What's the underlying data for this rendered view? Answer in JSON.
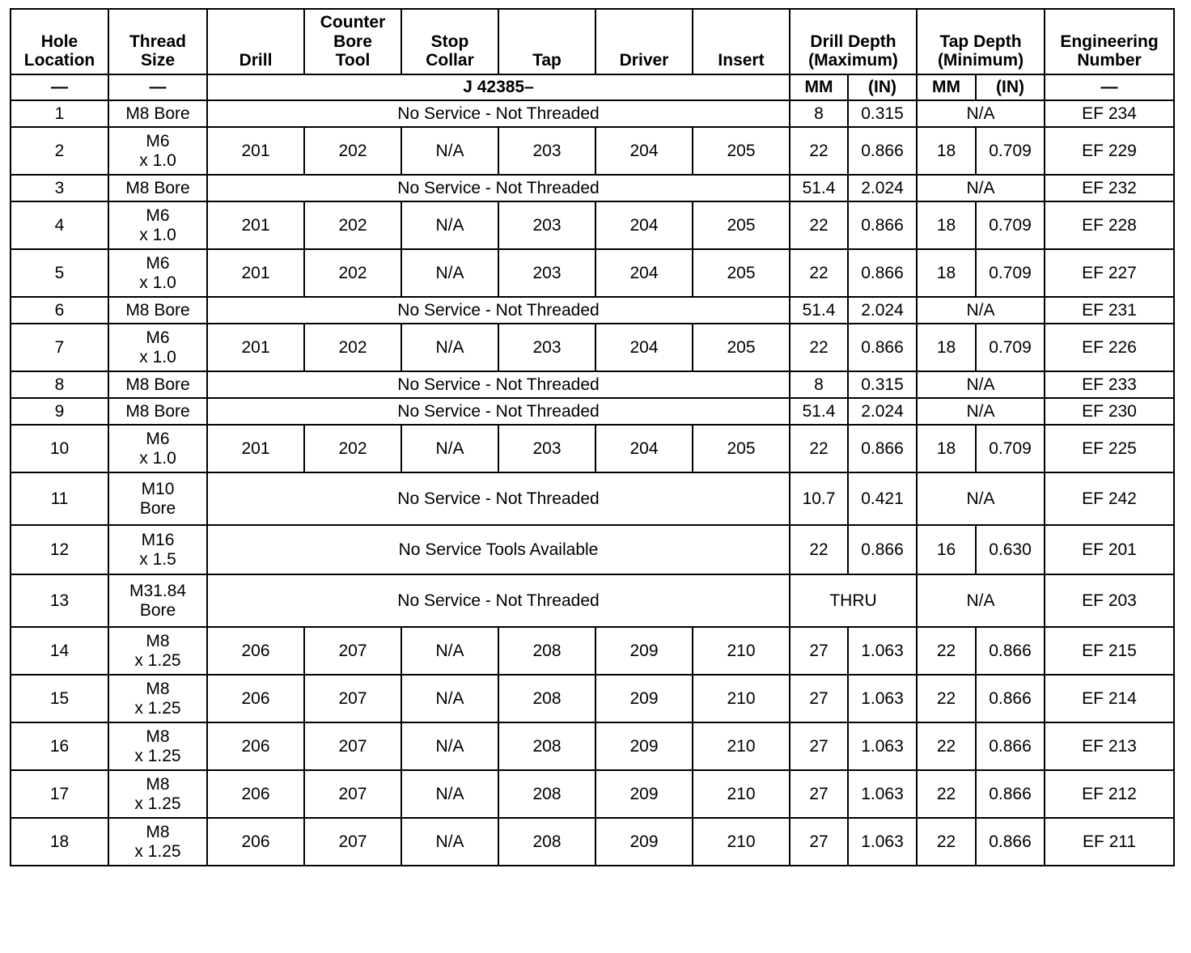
{
  "table": {
    "header": [
      [
        "Hole\nLocation",
        "Thread\nSize",
        "Drill",
        "Counter\nBore\nTool",
        "Stop\nCollar",
        "Tap",
        "Driver",
        "Insert",
        "Drill Depth\n(Maximum)",
        "Tap Depth\n(Minimum)",
        "Engineering\nNumber"
      ],
      [
        "—",
        "—",
        "J 42385–",
        "MM",
        "(IN)",
        "MM",
        "(IN)",
        "—"
      ]
    ],
    "rows": [
      [
        "1",
        "M8 Bore",
        "No Service - Not Threaded",
        "8",
        "0.315",
        "N/A",
        "EF 234"
      ],
      [
        "2",
        "M6\nx 1.0",
        "201",
        "202",
        "N/A",
        "203",
        "204",
        "205",
        "22",
        "0.866",
        "18",
        "0.709",
        "EF 229"
      ],
      [
        "3",
        "M8 Bore",
        "No Service - Not Threaded",
        "51.4",
        "2.024",
        "N/A",
        "EF 232"
      ],
      [
        "4",
        "M6\nx 1.0",
        "201",
        "202",
        "N/A",
        "203",
        "204",
        "205",
        "22",
        "0.866",
        "18",
        "0.709",
        "EF 228"
      ],
      [
        "5",
        "M6\nx 1.0",
        "201",
        "202",
        "N/A",
        "203",
        "204",
        "205",
        "22",
        "0.866",
        "18",
        "0.709",
        "EF 227"
      ],
      [
        "6",
        "M8 Bore",
        "No Service - Not Threaded",
        "51.4",
        "2.024",
        "N/A",
        "EF 231"
      ],
      [
        "7",
        "M6\nx 1.0",
        "201",
        "202",
        "N/A",
        "203",
        "204",
        "205",
        "22",
        "0.866",
        "18",
        "0.709",
        "EF 226"
      ],
      [
        "8",
        "M8 Bore",
        "No Service - Not Threaded",
        "8",
        "0.315",
        "N/A",
        "EF 233"
      ],
      [
        "9",
        "M8 Bore",
        "No Service - Not Threaded",
        "51.4",
        "2.024",
        "N/A",
        "EF 230"
      ],
      [
        "10",
        "M6\nx 1.0",
        "201",
        "202",
        "N/A",
        "203",
        "204",
        "205",
        "22",
        "0.866",
        "18",
        "0.709",
        "EF 225"
      ],
      [
        "11",
        "M10\nBore",
        "No Service - Not Threaded",
        "10.7",
        "0.421",
        "N/A",
        "EF 242"
      ],
      [
        "12",
        "M16\nx 1.5",
        "No Service Tools Available",
        "22",
        "0.866",
        "16",
        "0.630",
        "EF 201"
      ],
      [
        "13",
        "M31.84\nBore",
        "No Service - Not Threaded",
        "THRU",
        "N/A",
        "EF 203"
      ],
      [
        "14",
        "M8\nx 1.25",
        "206",
        "207",
        "N/A",
        "208",
        "209",
        "210",
        "27",
        "1.063",
        "22",
        "0.866",
        "EF 215"
      ],
      [
        "15",
        "M8\nx 1.25",
        "206",
        "207",
        "N/A",
        "208",
        "209",
        "210",
        "27",
        "1.063",
        "22",
        "0.866",
        "EF 214"
      ],
      [
        "16",
        "M8\nx 1.25",
        "206",
        "207",
        "N/A",
        "208",
        "209",
        "210",
        "27",
        "1.063",
        "22",
        "0.866",
        "EF 213"
      ],
      [
        "17",
        "M8\nx 1.25",
        "206",
        "207",
        "N/A",
        "208",
        "209",
        "210",
        "27",
        "1.063",
        "22",
        "0.866",
        "EF 212"
      ],
      [
        "18",
        "M8\nx 1.25",
        "206",
        "207",
        "N/A",
        "208",
        "209",
        "210",
        "27",
        "1.063",
        "22",
        "0.866",
        "EF 211"
      ]
    ]
  }
}
